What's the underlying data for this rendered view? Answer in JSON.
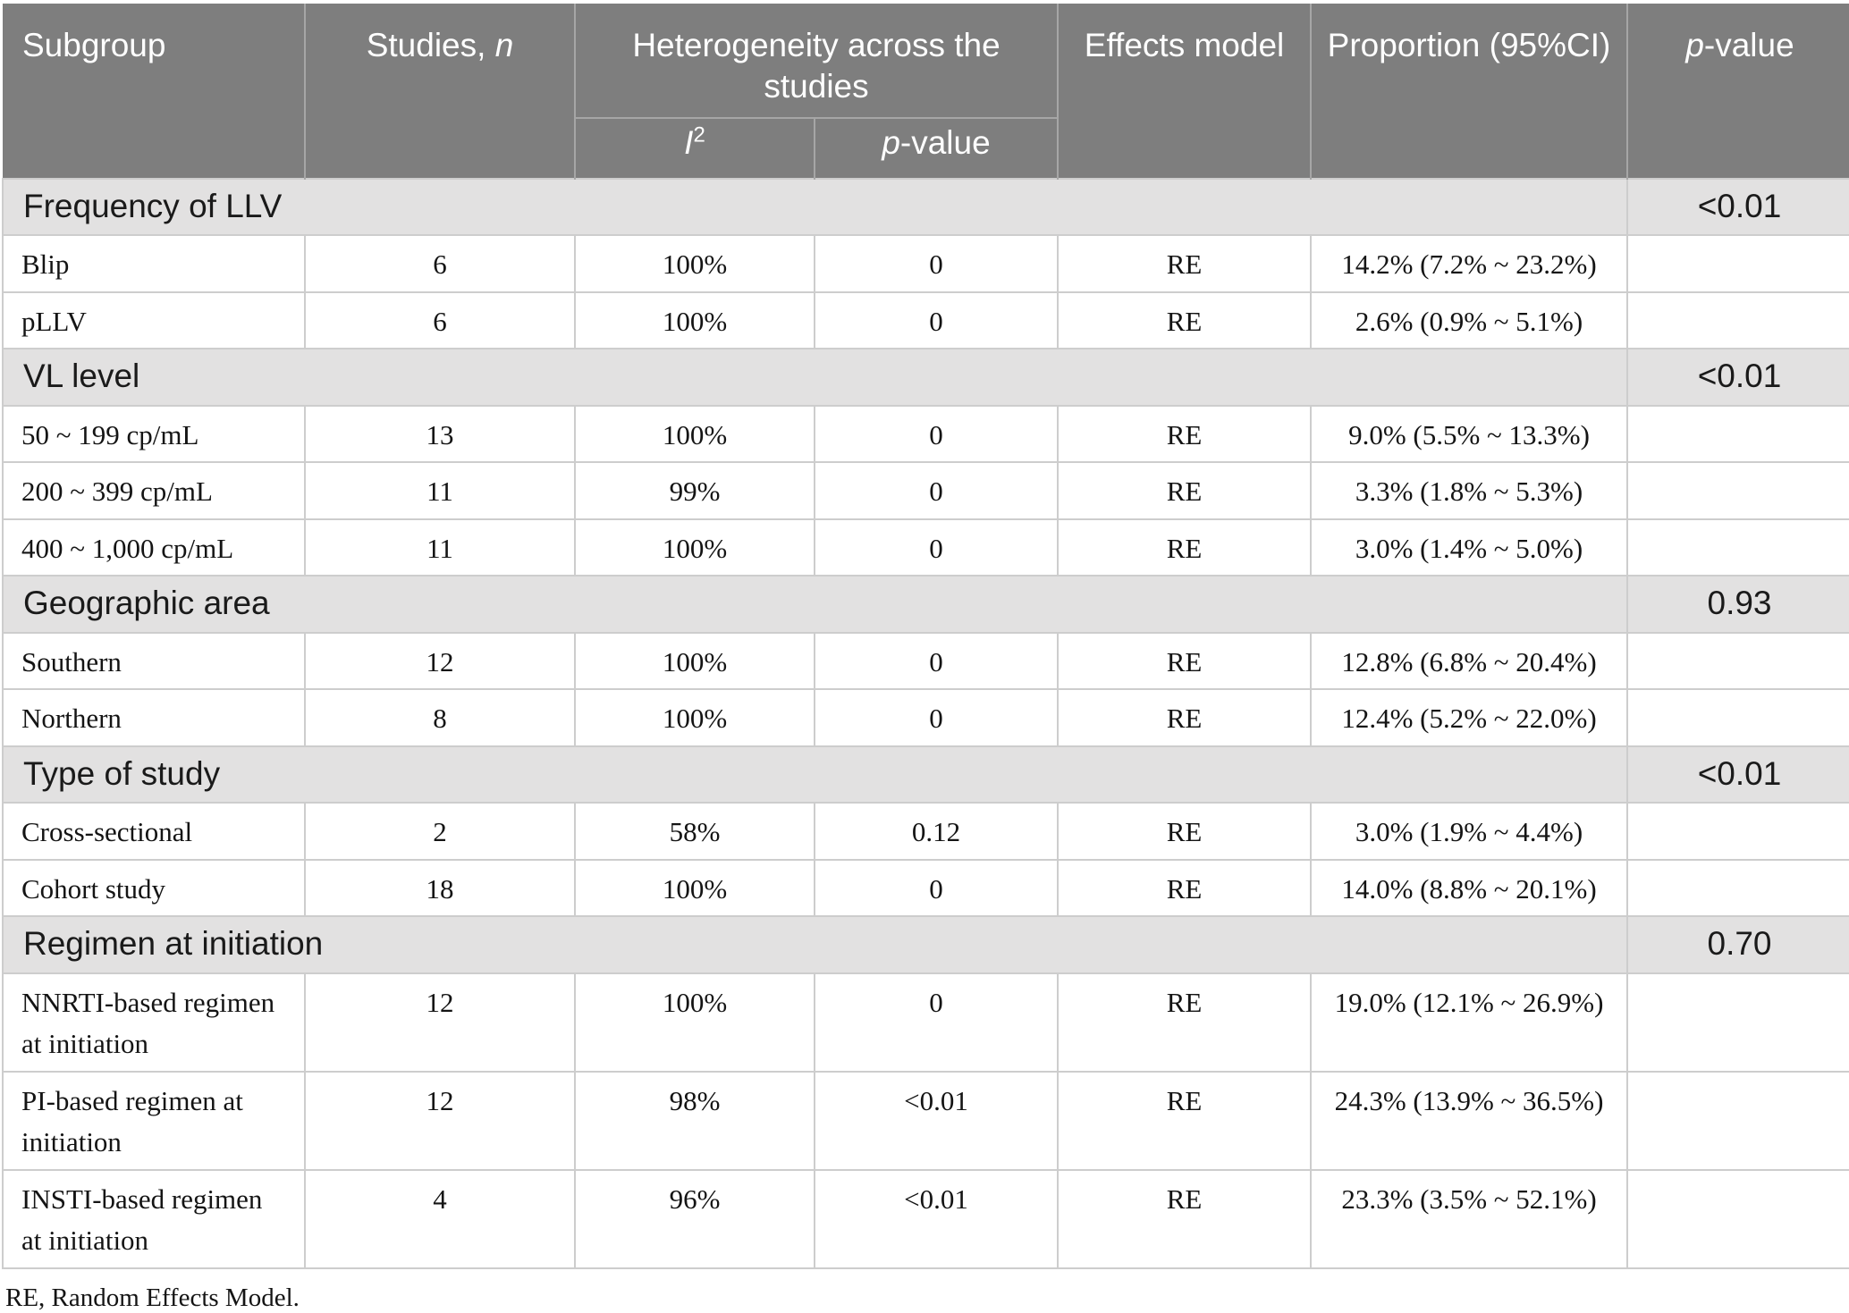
{
  "header": {
    "subgroup": "Subgroup",
    "studies_prefix": "Studies, ",
    "studies_italic": "n",
    "heterogeneity": "Heterogeneity across the studies",
    "i2_italic": "I",
    "i2_sup": "2",
    "p_italic": "p",
    "p_rest": "-value",
    "effects_model": "Effects model",
    "proportion": "Proportion (95%CI)"
  },
  "table": {
    "sections": [
      {
        "label": "Frequency of LLV",
        "p_value": "<0.01",
        "rows": [
          {
            "subgroup": "Blip",
            "studies_n": "6",
            "i2": "100%",
            "het_p_value": "0",
            "effects_model": "RE",
            "proportion": "14.2% (7.2% ~ 23.2%)",
            "p_value": ""
          },
          {
            "subgroup": "pLLV",
            "studies_n": "6",
            "i2": "100%",
            "het_p_value": "0",
            "effects_model": "RE",
            "proportion": "2.6% (0.9% ~ 5.1%)",
            "p_value": ""
          }
        ]
      },
      {
        "label": "VL level",
        "p_value": "<0.01",
        "rows": [
          {
            "subgroup": "50 ~ 199 cp/mL",
            "studies_n": "13",
            "i2": "100%",
            "het_p_value": "0",
            "effects_model": "RE",
            "proportion": "9.0% (5.5% ~ 13.3%)",
            "p_value": ""
          },
          {
            "subgroup": "200 ~ 399 cp/mL",
            "studies_n": "11",
            "i2": "99%",
            "het_p_value": "0",
            "effects_model": "RE",
            "proportion": "3.3% (1.8% ~ 5.3%)",
            "p_value": ""
          },
          {
            "subgroup": "400 ~ 1,000 cp/mL",
            "studies_n": "11",
            "i2": "100%",
            "het_p_value": "0",
            "effects_model": "RE",
            "proportion": "3.0% (1.4% ~ 5.0%)",
            "p_value": ""
          }
        ]
      },
      {
        "label": "Geographic area",
        "p_value": "0.93",
        "rows": [
          {
            "subgroup": "Southern",
            "studies_n": "12",
            "i2": "100%",
            "het_p_value": "0",
            "effects_model": "RE",
            "proportion": "12.8% (6.8% ~ 20.4%)",
            "p_value": ""
          },
          {
            "subgroup": "Northern",
            "studies_n": "8",
            "i2": "100%",
            "het_p_value": "0",
            "effects_model": "RE",
            "proportion": "12.4% (5.2% ~ 22.0%)",
            "p_value": ""
          }
        ]
      },
      {
        "label": "Type of study",
        "p_value": "<0.01",
        "rows": [
          {
            "subgroup": "Cross-sectional",
            "studies_n": "2",
            "i2": "58%",
            "het_p_value": "0.12",
            "effects_model": "RE",
            "proportion": "3.0% (1.9% ~ 4.4%)",
            "p_value": ""
          },
          {
            "subgroup": "Cohort study",
            "studies_n": "18",
            "i2": "100%",
            "het_p_value": "0",
            "effects_model": "RE",
            "proportion": "14.0% (8.8% ~ 20.1%)",
            "p_value": ""
          }
        ]
      },
      {
        "label": "Regimen at initiation",
        "p_value": "0.70",
        "rows": [
          {
            "subgroup": "NNRTI-based regimen at initiation",
            "studies_n": "12",
            "i2": "100%",
            "het_p_value": "0",
            "effects_model": "RE",
            "proportion": "19.0% (12.1% ~ 26.9%)",
            "p_value": ""
          },
          {
            "subgroup": "PI-based regimen at initiation",
            "studies_n": "12",
            "i2": "98%",
            "het_p_value": "<0.01",
            "effects_model": "RE",
            "proportion": "24.3% (13.9% ~ 36.5%)",
            "p_value": ""
          },
          {
            "subgroup": "INSTI-based regimen at initiation",
            "studies_n": "4",
            "i2": "96%",
            "het_p_value": "<0.01",
            "effects_model": "RE",
            "proportion": "23.3% (3.5% ~ 52.1%)",
            "p_value": ""
          }
        ]
      }
    ]
  },
  "footnote": "RE, Random Effects Model.",
  "colors": {
    "header_bg": "#7e7e7e",
    "header_border": "#a6a6a6",
    "section_bg": "#e2e1e1",
    "body_border": "#cdcdcd",
    "text": "#141414"
  }
}
